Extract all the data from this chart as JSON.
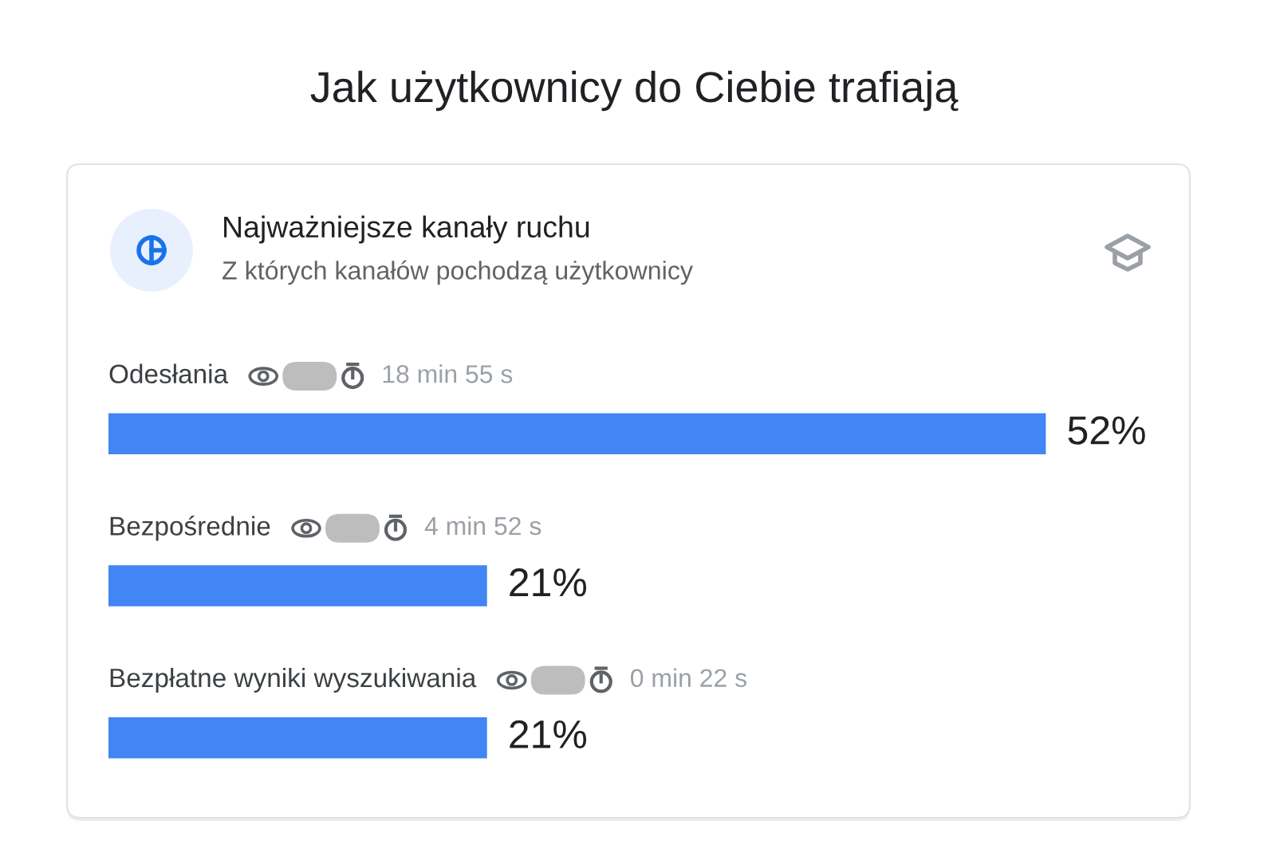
{
  "chart_data": {
    "type": "bar",
    "orientation": "horizontal",
    "title": "Jak użytkownicy do Ciebie trafiają",
    "subtitle": "Najważniejsze kanały ruchu",
    "annotations": [
      "Z których kanałów pochodzą użytkownicy",
      "18 min 55 s",
      "4 min 52 s",
      "0 min 22 s"
    ],
    "categories": [
      "Odesłania",
      "Bezpośrednie",
      "Bezpłatne wyniki wyszukiwania"
    ],
    "values": [
      52,
      21,
      21
    ],
    "color": "#4285f4",
    "value_labels": [
      "52%",
      "21%",
      "21%"
    ],
    "tick_labels": "y"
  }
}
